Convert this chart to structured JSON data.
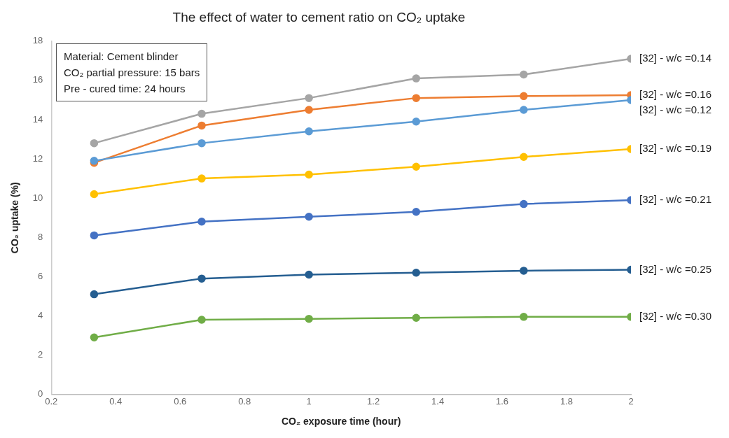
{
  "chart_data": {
    "type": "line",
    "title": "The effect of water to cement ratio on CO₂ uptake",
    "xlabel": "CO₂ exposure time (hour)",
    "ylabel": "CO₂ uptake (%)",
    "annotations": [
      "Material: Cement blinder",
      "CO₂ partial pressure: 15 bars",
      "Pre - cured time: 24 hours"
    ],
    "x": [
      0.333,
      0.667,
      1,
      1.333,
      1.667,
      2
    ],
    "series": [
      {
        "name": "[32] - w/c =0.14",
        "color": "#a5a5a5",
        "values": [
          12.8,
          14.3,
          15.1,
          16.1,
          16.3,
          17.1
        ]
      },
      {
        "name": "[32] - w/c =0.16",
        "color": "#ed7d31",
        "values": [
          11.8,
          13.7,
          14.5,
          15.1,
          15.2,
          15.25
        ]
      },
      {
        "name": "[32] - w/c =0.12",
        "color": "#5b9bd5",
        "values": [
          11.9,
          12.8,
          13.4,
          13.9,
          14.5,
          15.0
        ]
      },
      {
        "name": "[32] - w/c =0.19",
        "color": "#ffc000",
        "values": [
          10.2,
          11.0,
          11.2,
          11.6,
          12.1,
          12.5
        ]
      },
      {
        "name": "[32] - w/c =0.21",
        "color": "#4472c4",
        "values": [
          8.1,
          8.8,
          9.05,
          9.3,
          9.7,
          9.9
        ]
      },
      {
        "name": "[32] - w/c =0.25",
        "color": "#255e91",
        "values": [
          5.1,
          5.9,
          6.1,
          6.2,
          6.3,
          6.35
        ]
      },
      {
        "name": "[32] - w/c =0.30",
        "color": "#70ad47",
        "values": [
          2.9,
          3.8,
          3.85,
          3.9,
          3.95,
          3.95
        ]
      }
    ],
    "xlim": [
      0.2,
      2
    ],
    "xticks": [
      0.2,
      0.4,
      0.6,
      0.8,
      1,
      1.2,
      1.4,
      1.6,
      1.8,
      2
    ],
    "ylim": [
      0,
      18
    ],
    "yticks": [
      0,
      2,
      4,
      6,
      8,
      10,
      12,
      14,
      16,
      18
    ],
    "grid": false,
    "legend": false,
    "marker": "circle",
    "line_style": "solid"
  }
}
